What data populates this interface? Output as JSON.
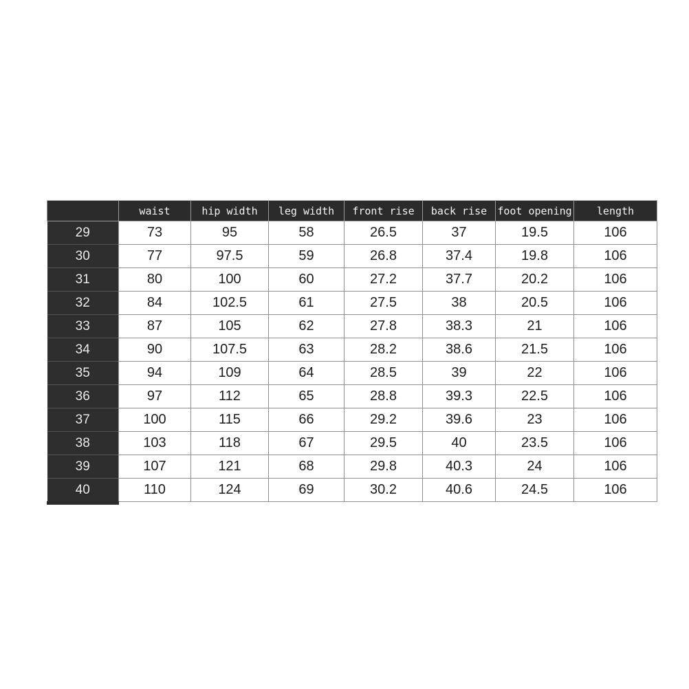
{
  "chart_data": {
    "type": "table",
    "columns": [
      "",
      "waist",
      "hip width",
      "leg width",
      "front rise",
      "back rise",
      "foot opening",
      "length"
    ],
    "rows": [
      [
        "29",
        "73",
        "95",
        "58",
        "26.5",
        "37",
        "19.5",
        "106"
      ],
      [
        "30",
        "77",
        "97.5",
        "59",
        "26.8",
        "37.4",
        "19.8",
        "106"
      ],
      [
        "31",
        "80",
        "100",
        "60",
        "27.2",
        "37.7",
        "20.2",
        "106"
      ],
      [
        "32",
        "84",
        "102.5",
        "61",
        "27.5",
        "38",
        "20.5",
        "106"
      ],
      [
        "33",
        "87",
        "105",
        "62",
        "27.8",
        "38.3",
        "21",
        "106"
      ],
      [
        "34",
        "90",
        "107.5",
        "63",
        "28.2",
        "38.6",
        "21.5",
        "106"
      ],
      [
        "35",
        "94",
        "109",
        "64",
        "28.5",
        "39",
        "22",
        "106"
      ],
      [
        "36",
        "97",
        "112",
        "65",
        "28.8",
        "39.3",
        "22.5",
        "106"
      ],
      [
        "37",
        "100",
        "115",
        "66",
        "29.2",
        "39.6",
        "23",
        "106"
      ],
      [
        "38",
        "103",
        "118",
        "67",
        "29.5",
        "40",
        "23.5",
        "106"
      ],
      [
        "39",
        "107",
        "121",
        "68",
        "29.8",
        "40.3",
        "24",
        "106"
      ],
      [
        "40",
        "110",
        "124",
        "69",
        "30.2",
        "40.6",
        "24.5",
        "106"
      ]
    ],
    "layout": {
      "grid": true,
      "header_row": true,
      "size_column_highlighted": true
    }
  },
  "colors": {
    "page_bg": "#ffffff",
    "header_bg": "#2b2b2b",
    "size_col_bg": "#2e2e2e",
    "grid_border": "#8f8f8f",
    "cell_text": "#1c1c1c",
    "header_text": "#f4f4f4"
  }
}
